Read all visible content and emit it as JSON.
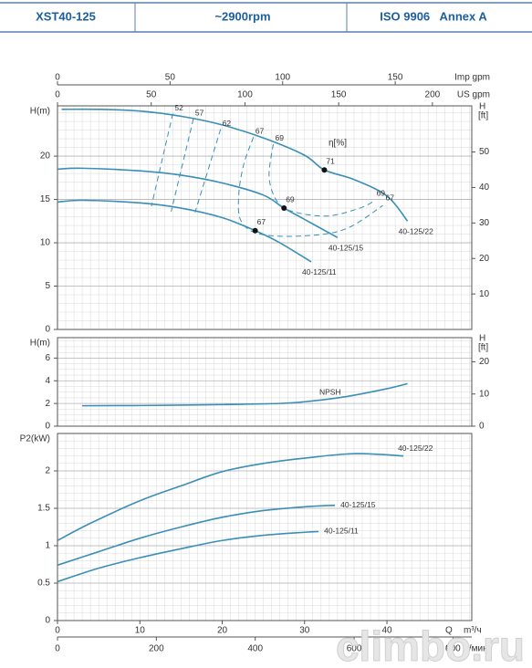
{
  "header": {
    "model": "XST40-125",
    "speed": "~2900rpm",
    "standard": "ISO 9906   Annex A"
  },
  "watermark": "climbo.ru",
  "chart_data": [
    {
      "type": "line",
      "ylabel": "H(m)",
      "y2label": "H",
      "y2unit": "[ft]",
      "xlim": [
        0,
        50.3
      ],
      "ylim": [
        0,
        25.8
      ],
      "yticks": [
        0,
        5,
        10,
        15,
        20
      ],
      "y2lim": [
        0,
        63
      ],
      "y2ticks": [
        10,
        20,
        30,
        40,
        50
      ],
      "minor_grid": {
        "x": 1,
        "y": 1
      },
      "top_axes": [
        {
          "unit": "Imp gpm",
          "xlim": [
            0,
            184
          ],
          "xticks": [
            0,
            50,
            100,
            150
          ]
        },
        {
          "unit": "US gpm",
          "xlim": [
            0,
            221
          ],
          "xticks": [
            0,
            50,
            100,
            150,
            200
          ]
        }
      ],
      "series": [
        {
          "name": "40-125/22",
          "color": "#3a8fb7",
          "x": [
            0.5,
            5,
            10,
            15,
            20,
            25,
            30,
            32.4,
            36,
            40,
            42.5
          ],
          "values": [
            25.4,
            25.4,
            25.2,
            24.6,
            23.6,
            22.1,
            20.1,
            18.4,
            17.3,
            15.4,
            12.5
          ]
        },
        {
          "name": "40-125/15",
          "color": "#3a8fb7",
          "x": [
            0,
            3,
            10,
            15,
            20,
            25,
            27.5,
            30,
            34
          ],
          "values": [
            18.5,
            18.6,
            18.3,
            17.8,
            16.9,
            15.5,
            14.0,
            12.7,
            10.6
          ]
        },
        {
          "name": "40-125/11",
          "color": "#3a8fb7",
          "x": [
            0,
            3,
            10,
            15,
            20,
            24,
            27,
            30.8
          ],
          "values": [
            14.7,
            14.9,
            14.6,
            14.0,
            12.9,
            11.4,
            10.0,
            7.8
          ]
        }
      ],
      "eta_label": "η[%]",
      "efficiency_lines": [
        {
          "eta": 52,
          "x": [
            14.0,
            11.4
          ],
          "y": [
            24.9,
            14.2
          ]
        },
        {
          "eta": 57,
          "x": [
            16.5,
            13.8
          ],
          "y": [
            24.3,
            13.6
          ]
        },
        {
          "eta": 62,
          "x": [
            19.8,
            16.7
          ],
          "y": [
            23.1,
            13.5
          ]
        },
        {
          "eta": 67,
          "x": [
            23.8,
            22.6,
            22.0,
            22.3,
            24.6,
            30,
            35,
            39.5
          ],
          "y": [
            22.2,
            19,
            15.4,
            12.5,
            11.0,
            10.8,
            11.6,
            14.3
          ]
        },
        {
          "eta": 69,
          "x": [
            26.2,
            25.7,
            26.8,
            29,
            32.9,
            36.7,
            38.4
          ],
          "y": [
            21.4,
            17.5,
            14.6,
            13.5,
            13.1,
            14.0,
            14.8
          ]
        }
      ],
      "points": [
        {
          "x": 32.4,
          "y": 18.4,
          "eta": 71
        },
        {
          "x": 27.5,
          "y": 14.0,
          "eta": 69
        },
        {
          "x": 24,
          "y": 11.4,
          "eta": 67
        }
      ]
    },
    {
      "type": "line",
      "ylabel": "H(m)",
      "y2label": "H",
      "y2unit": "[ft]",
      "xlim": [
        0,
        50.3
      ],
      "ylim": [
        0,
        7.8
      ],
      "yticks": [
        0,
        2,
        4,
        6
      ],
      "y2lim": [
        0,
        27.5
      ],
      "y2ticks": [
        0,
        10,
        20
      ],
      "minor_grid": {
        "x": 1,
        "y": 0.5
      },
      "series": [
        {
          "name": "NPSH",
          "color": "#3a8fb7",
          "x": [
            3,
            10,
            20,
            27,
            30,
            35,
            40,
            42.5
          ],
          "values": [
            1.8,
            1.82,
            1.9,
            2.0,
            2.15,
            2.6,
            3.3,
            3.75
          ]
        }
      ]
    },
    {
      "type": "line",
      "ylabel": "P2(kW)",
      "xlabel": "Q",
      "xunit": "m³/ч",
      "xlim": [
        0,
        50.3
      ],
      "xticks": [
        0,
        10,
        20,
        30,
        40
      ],
      "ylim": [
        0,
        2.5
      ],
      "yticks": [
        0,
        0.5,
        1,
        1.5,
        2
      ],
      "minor_grid": {
        "x": 1,
        "y": 0.1
      },
      "x2": {
        "label": "Q",
        "unit": "л/мин",
        "xlim": [
          0,
          838
        ],
        "xticks": [
          0,
          200,
          400,
          600,
          800
        ]
      },
      "series": [
        {
          "name": "40-125/22",
          "color": "#3a8fb7",
          "x": [
            0,
            4,
            10,
            15,
            20,
            25,
            30,
            36,
            42
          ],
          "values": [
            1.07,
            1.3,
            1.6,
            1.8,
            1.99,
            2.1,
            2.17,
            2.23,
            2.2
          ]
        },
        {
          "name": "40-125/15",
          "color": "#3a8fb7",
          "x": [
            0,
            5,
            10,
            15,
            20,
            25,
            30,
            33.7
          ],
          "values": [
            0.74,
            0.92,
            1.1,
            1.25,
            1.38,
            1.47,
            1.52,
            1.54
          ]
        },
        {
          "name": "40-125/11",
          "color": "#3a8fb7",
          "x": [
            0,
            5,
            10,
            15,
            20,
            25,
            30,
            31.7
          ],
          "values": [
            0.52,
            0.7,
            0.84,
            0.96,
            1.07,
            1.14,
            1.18,
            1.19
          ]
        }
      ]
    }
  ]
}
